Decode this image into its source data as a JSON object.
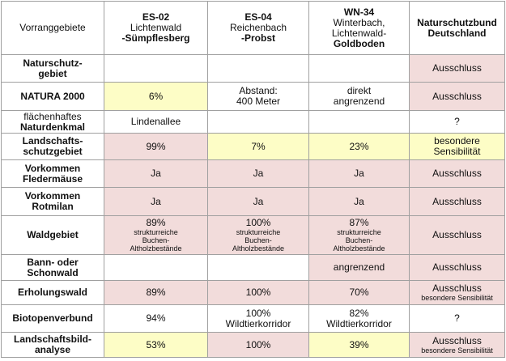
{
  "table": {
    "header": {
      "label": "Vorranggebiete",
      "es02": [
        "ES-02",
        "Lichtenwald",
        "-Sümpflesberg"
      ],
      "es04": [
        "ES-04",
        "Reichenbach",
        "-Probst"
      ],
      "wn34": [
        "WN-34",
        "Winterbach,",
        "Lichtenwald-",
        "Goldboden"
      ],
      "nabu": [
        "Naturschutzbund",
        "Deutschland"
      ]
    },
    "rows": [
      {
        "label": [
          "Naturschutz-",
          "gebiet"
        ],
        "nabu": "Ausschluss"
      },
      {
        "label": "NATURA 2000",
        "es02": "6%",
        "es04": [
          "Abstand:",
          "400 Meter"
        ],
        "wn34": [
          "direkt",
          "angrenzend"
        ],
        "nabu": "Ausschluss"
      },
      {
        "label": [
          "flächenhaftes",
          "Naturdenkmal"
        ],
        "es02": "Lindenallee",
        "nabu": "?"
      },
      {
        "label": [
          "Landschafts-",
          "schutzgebiet"
        ],
        "es02": "99%",
        "es04": "7%",
        "wn34": "23%",
        "nabu": [
          "besondere",
          "Sensibilität"
        ]
      },
      {
        "label": [
          "Vorkommen",
          "Fledermäuse"
        ],
        "es02": "Ja",
        "es04": "Ja",
        "wn34": "Ja",
        "nabu": "Ausschluss"
      },
      {
        "label": [
          "Vorkommen",
          "Rotmilan"
        ],
        "es02": "Ja",
        "es04": "Ja",
        "wn34": "Ja",
        "nabu": "Ausschluss"
      },
      {
        "label": "Waldgebiet",
        "es02": [
          "89%",
          "strukturreiche",
          "Buchen-",
          "Altholzbestände"
        ],
        "es04": [
          "100%",
          "strukturreiche",
          "Buchen-",
          "Altholzbestände"
        ],
        "wn34": [
          "87%",
          "strukturreiche",
          "Buchen-",
          "Altholzbestände"
        ],
        "nabu": "Ausschluss"
      },
      {
        "label": [
          "Bann- oder",
          "Schonwald"
        ],
        "wn34": "angrenzend",
        "nabu": "Ausschluss"
      },
      {
        "label": "Erholungswald",
        "es02": "89%",
        "es04": "100%",
        "wn34": "70%",
        "nabu": [
          "Ausschluss",
          "besondere Sensibilität"
        ]
      },
      {
        "label": "Biotopenverbund",
        "es02": "94%",
        "es04": [
          "100%",
          "Wildtierkorridor"
        ],
        "wn34": [
          "82%",
          "Wildtierkorridor"
        ],
        "nabu": "?"
      },
      {
        "label": [
          "Landschaftsbild-",
          "analyse"
        ],
        "es02": "53%",
        "es04": "100%",
        "wn34": "39%",
        "nabu": [
          "Ausschluss",
          "besondere Sensibilität"
        ]
      }
    ]
  }
}
